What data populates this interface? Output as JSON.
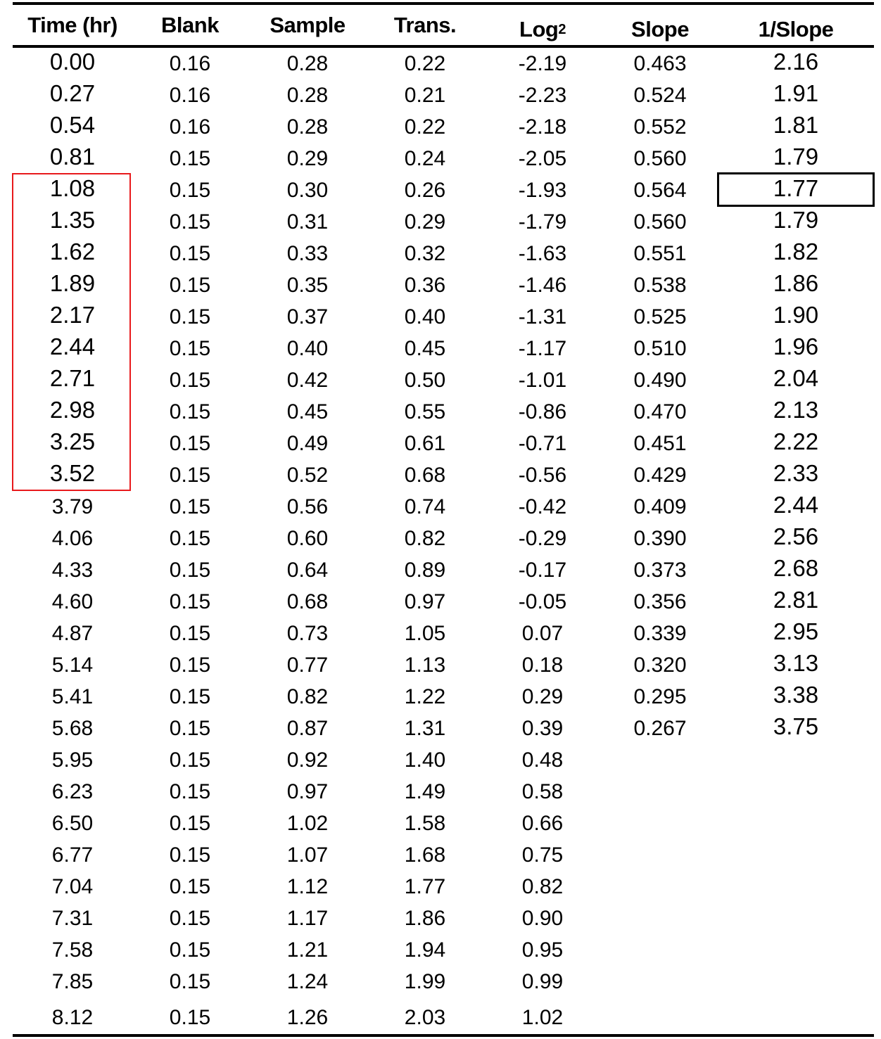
{
  "table": {
    "headers": [
      "Time (hr)",
      "Blank",
      "Sample",
      "Trans.",
      "Log",
      "Slope",
      "1/Slope"
    ],
    "log_subscript": "2",
    "rows": [
      [
        "0.00",
        "0.16",
        "0.28",
        "0.22",
        "-2.19",
        "0.463",
        "2.16"
      ],
      [
        "0.27",
        "0.16",
        "0.28",
        "0.21",
        "-2.23",
        "0.524",
        "1.91"
      ],
      [
        "0.54",
        "0.16",
        "0.28",
        "0.22",
        "-2.18",
        "0.552",
        "1.81"
      ],
      [
        "0.81",
        "0.15",
        "0.29",
        "0.24",
        "-2.05",
        "0.560",
        "1.79"
      ],
      [
        "1.08",
        "0.15",
        "0.30",
        "0.26",
        "-1.93",
        "0.564",
        "1.77"
      ],
      [
        "1.35",
        "0.15",
        "0.31",
        "0.29",
        "-1.79",
        "0.560",
        "1.79"
      ],
      [
        "1.62",
        "0.15",
        "0.33",
        "0.32",
        "-1.63",
        "0.551",
        "1.82"
      ],
      [
        "1.89",
        "0.15",
        "0.35",
        "0.36",
        "-1.46",
        "0.538",
        "1.86"
      ],
      [
        "2.17",
        "0.15",
        "0.37",
        "0.40",
        "-1.31",
        "0.525",
        "1.90"
      ],
      [
        "2.44",
        "0.15",
        "0.40",
        "0.45",
        "-1.17",
        "0.510",
        "1.96"
      ],
      [
        "2.71",
        "0.15",
        "0.42",
        "0.50",
        "-1.01",
        "0.490",
        "2.04"
      ],
      [
        "2.98",
        "0.15",
        "0.45",
        "0.55",
        "-0.86",
        "0.470",
        "2.13"
      ],
      [
        "3.25",
        "0.15",
        "0.49",
        "0.61",
        "-0.71",
        "0.451",
        "2.22"
      ],
      [
        "3.52",
        "0.15",
        "0.52",
        "0.68",
        "-0.56",
        "0.429",
        "2.33"
      ],
      [
        "3.79",
        "0.15",
        "0.56",
        "0.74",
        "-0.42",
        "0.409",
        "2.44"
      ],
      [
        "4.06",
        "0.15",
        "0.60",
        "0.82",
        "-0.29",
        "0.390",
        "2.56"
      ],
      [
        "4.33",
        "0.15",
        "0.64",
        "0.89",
        "-0.17",
        "0.373",
        "2.68"
      ],
      [
        "4.60",
        "0.15",
        "0.68",
        "0.97",
        "-0.05",
        "0.356",
        "2.81"
      ],
      [
        "4.87",
        "0.15",
        "0.73",
        "1.05",
        "0.07",
        "0.339",
        "2.95"
      ],
      [
        "5.14",
        "0.15",
        "0.77",
        "1.13",
        "0.18",
        "0.320",
        "3.13"
      ],
      [
        "5.41",
        "0.15",
        "0.82",
        "1.22",
        "0.29",
        "0.295",
        "3.38"
      ],
      [
        "5.68",
        "0.15",
        "0.87",
        "1.31",
        "0.39",
        "0.267",
        "3.75"
      ],
      [
        "5.95",
        "0.15",
        "0.92",
        "1.40",
        "0.48",
        "",
        ""
      ],
      [
        "6.23",
        "0.15",
        "0.97",
        "1.49",
        "0.58",
        "",
        ""
      ],
      [
        "6.50",
        "0.15",
        "1.02",
        "1.58",
        "0.66",
        "",
        ""
      ],
      [
        "6.77",
        "0.15",
        "1.07",
        "1.68",
        "0.75",
        "",
        ""
      ],
      [
        "7.04",
        "0.15",
        "1.12",
        "1.77",
        "0.82",
        "",
        ""
      ],
      [
        "7.31",
        "0.15",
        "1.17",
        "1.86",
        "0.90",
        "",
        ""
      ],
      [
        "7.58",
        "0.15",
        "1.21",
        "1.94",
        "0.95",
        "",
        ""
      ],
      [
        "7.85",
        "0.15",
        "1.24",
        "1.99",
        "0.99",
        "",
        ""
      ],
      [
        "8.12",
        "0.15",
        "1.26",
        "2.03",
        "1.02",
        "",
        ""
      ]
    ],
    "highlight_time_range": [
      "1.08",
      "3.52"
    ],
    "highlight_time_color": "#e8191c",
    "boxed_min_inverse_slope": "1.77",
    "boxed_color": "#000000"
  }
}
